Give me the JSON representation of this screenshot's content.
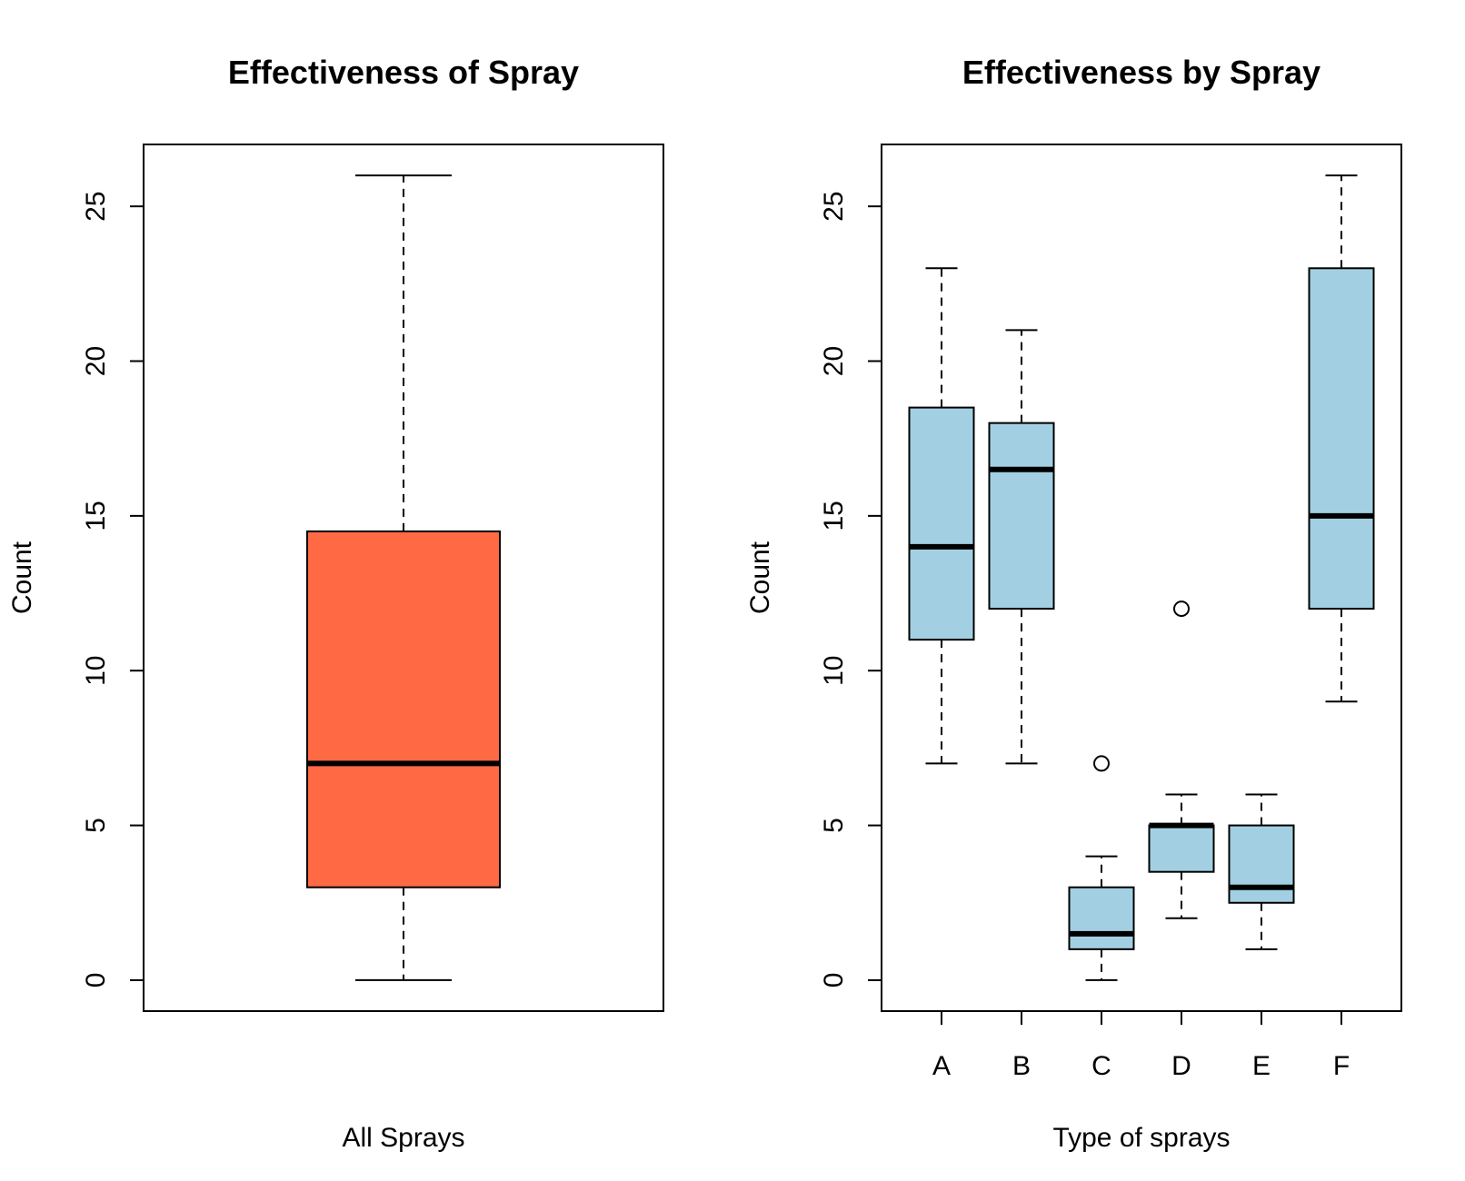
{
  "chart_data": [
    {
      "type": "box",
      "title": "Effectiveness of Spray",
      "xlabel": "All Sprays",
      "ylabel": "Count",
      "ylim": [
        -1,
        27
      ],
      "yticks": [
        0,
        5,
        10,
        15,
        20,
        25
      ],
      "categories": [],
      "box_color": "#FF6A45",
      "boxes": [
        {
          "min": 0,
          "q1": 3,
          "median": 7,
          "q3": 14.5,
          "max": 26,
          "outliers": []
        }
      ]
    },
    {
      "type": "box",
      "title": "Effectiveness by Spray",
      "xlabel": "Type of sprays",
      "ylabel": "Count",
      "ylim": [
        -1,
        27
      ],
      "yticks": [
        0,
        5,
        10,
        15,
        20,
        25
      ],
      "categories": [
        "A",
        "B",
        "C",
        "D",
        "E",
        "F"
      ],
      "box_color": "#A2D0E2",
      "boxes": [
        {
          "min": 7,
          "q1": 11,
          "median": 14,
          "q3": 18.5,
          "max": 23,
          "outliers": []
        },
        {
          "min": 7,
          "q1": 12,
          "median": 16.5,
          "q3": 18,
          "max": 21,
          "outliers": []
        },
        {
          "min": 0,
          "q1": 1,
          "median": 1.5,
          "q3": 3,
          "max": 4,
          "outliers": [
            7
          ]
        },
        {
          "min": 2,
          "q1": 3.5,
          "median": 5,
          "q3": 5,
          "max": 6,
          "outliers": [
            12
          ]
        },
        {
          "min": 1,
          "q1": 2.5,
          "median": 3,
          "q3": 5,
          "max": 6,
          "outliers": []
        },
        {
          "min": 9,
          "q1": 12,
          "median": 15,
          "q3": 23,
          "max": 26,
          "outliers": []
        }
      ]
    }
  ]
}
